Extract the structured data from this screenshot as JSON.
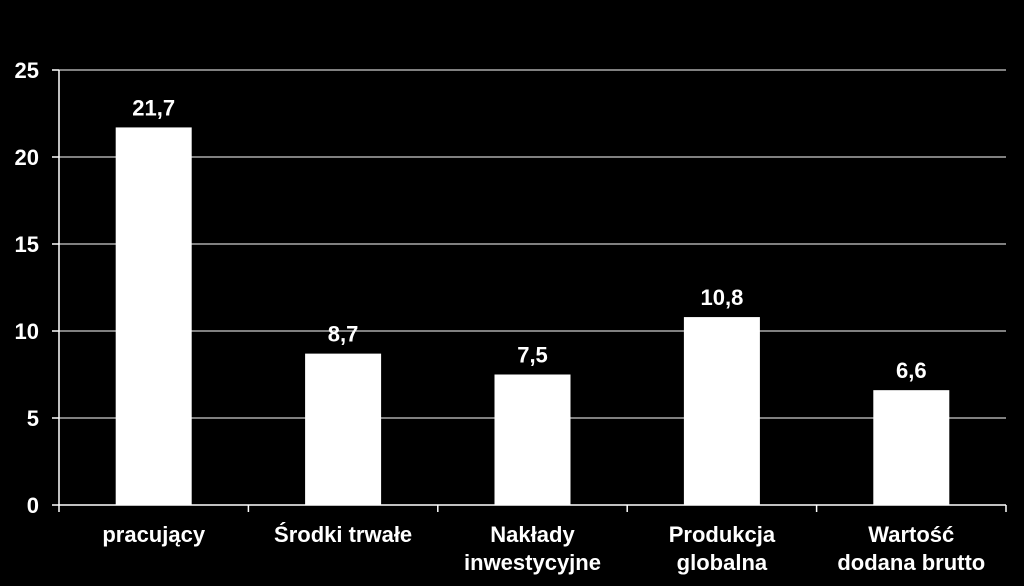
{
  "chart_data": {
    "type": "bar",
    "title": "",
    "xlabel": "",
    "ylabel": "",
    "categories": [
      [
        "pracujący"
      ],
      [
        "Środki trwałe"
      ],
      [
        "Nakłady",
        "inwestycyjne"
      ],
      [
        "Produkcja",
        "globalna"
      ],
      [
        "Wartość",
        "dodana brutto"
      ]
    ],
    "values": [
      21.7,
      8.7,
      7.5,
      10.8,
      6.6
    ],
    "data_labels": [
      "21,7",
      "8,7",
      "7,5",
      "10,8",
      "6,6"
    ],
    "ylim": [
      0,
      25
    ],
    "yticks": [
      0,
      5,
      10,
      15,
      20,
      25
    ],
    "ytick_labels": [
      "0",
      "5",
      "10",
      "15",
      "20",
      "25"
    ],
    "grid": true,
    "legend": "none",
    "colors": {
      "background": "#000000",
      "bar": "#ffffff",
      "gridline": "#ffffff",
      "text": "#ffffff"
    }
  }
}
